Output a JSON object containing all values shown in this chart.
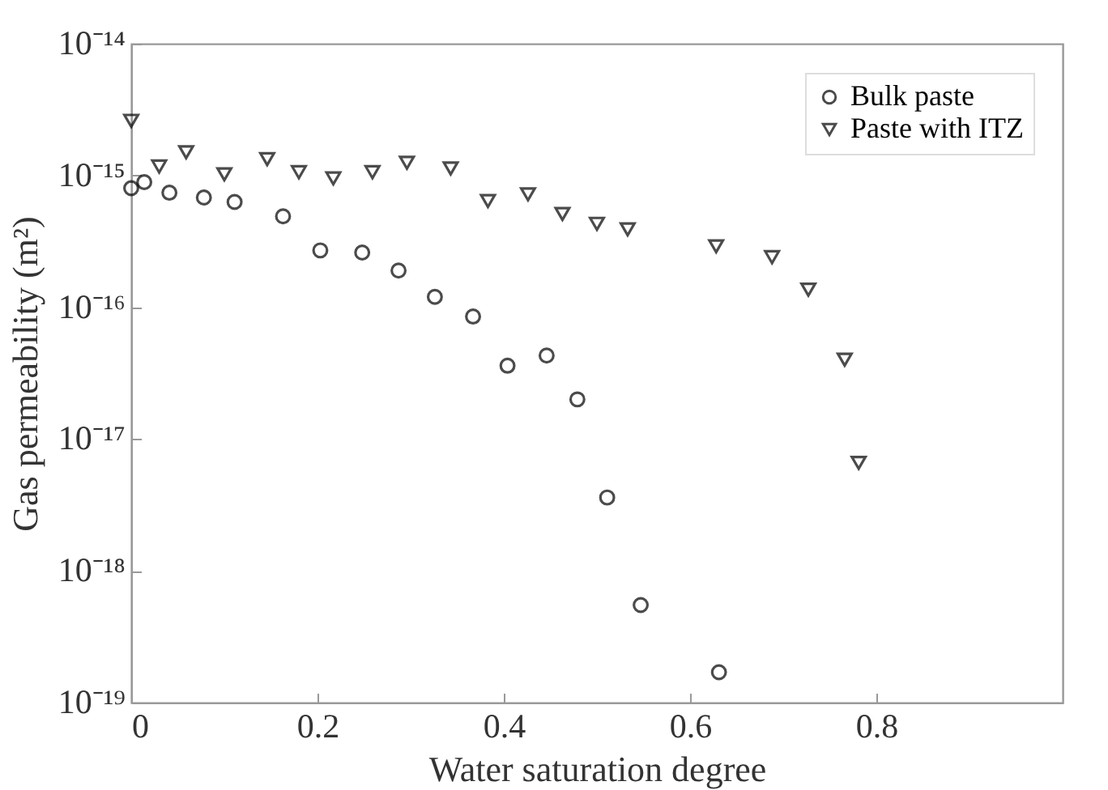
{
  "chart_data": {
    "type": "scatter",
    "xlabel": "Water saturation degree",
    "ylabel": "Gas permeability (m²)",
    "log": "y",
    "xlim": [
      0,
      1
    ],
    "xticks": [
      0,
      0.2,
      0.4,
      0.6,
      0.8
    ],
    "ylim": [
      1e-19,
      1e-14
    ],
    "yticks": [
      {
        "value": 1e-19,
        "label": "10⁻¹⁹"
      },
      {
        "value": 1e-18,
        "label": "10⁻¹⁸"
      },
      {
        "value": 1e-17,
        "label": "10⁻¹⁷"
      },
      {
        "value": 1e-16,
        "label": "10⁻¹⁶"
      },
      {
        "value": 1e-15,
        "label": "10⁻¹⁵"
      },
      {
        "value": 1e-14,
        "label": "10⁻¹⁴"
      }
    ],
    "grid": false,
    "legend": "top right",
    "series": [
      {
        "name": "Bulk paste",
        "color": "#000000",
        "marker": "circle",
        "x": [
          0,
          0.014,
          0.041,
          0.078,
          0.111,
          0.163,
          0.203,
          0.248,
          0.287,
          0.326,
          0.367,
          0.404,
          0.446,
          0.479,
          0.511,
          0.547,
          0.631
        ],
        "values": [
          8e-16,
          8.9e-16,
          7.4e-16,
          6.8e-16,
          6.3e-16,
          4.9e-16,
          2.7e-16,
          2.6e-16,
          1.9e-16,
          1.2e-16,
          8.5e-17,
          3.6e-17,
          4.3e-17,
          2e-17,
          3.6e-18,
          5.5e-19,
          1.7e-19
        ]
      },
      {
        "name": "Paste with ITZ",
        "color": "#000000",
        "marker": "triangle",
        "x": [
          0,
          0.03,
          0.059,
          0.1,
          0.146,
          0.18,
          0.217,
          0.259,
          0.296,
          0.343,
          0.383,
          0.426,
          0.463,
          0.5,
          0.533,
          0.628,
          0.688,
          0.727,
          0.766,
          0.781
        ],
        "values": [
          2.6e-15,
          1.17e-15,
          1.5e-15,
          1.02e-15,
          1.33e-15,
          1.06e-15,
          9.5e-16,
          1.06e-15,
          1.25e-15,
          1.13e-15,
          6.4e-16,
          7.2e-16,
          5.1e-16,
          4.3e-16,
          3.9e-16,
          2.9e-16,
          2.4e-16,
          1.36e-16,
          4e-17,
          6.6e-18
        ]
      }
    ]
  }
}
